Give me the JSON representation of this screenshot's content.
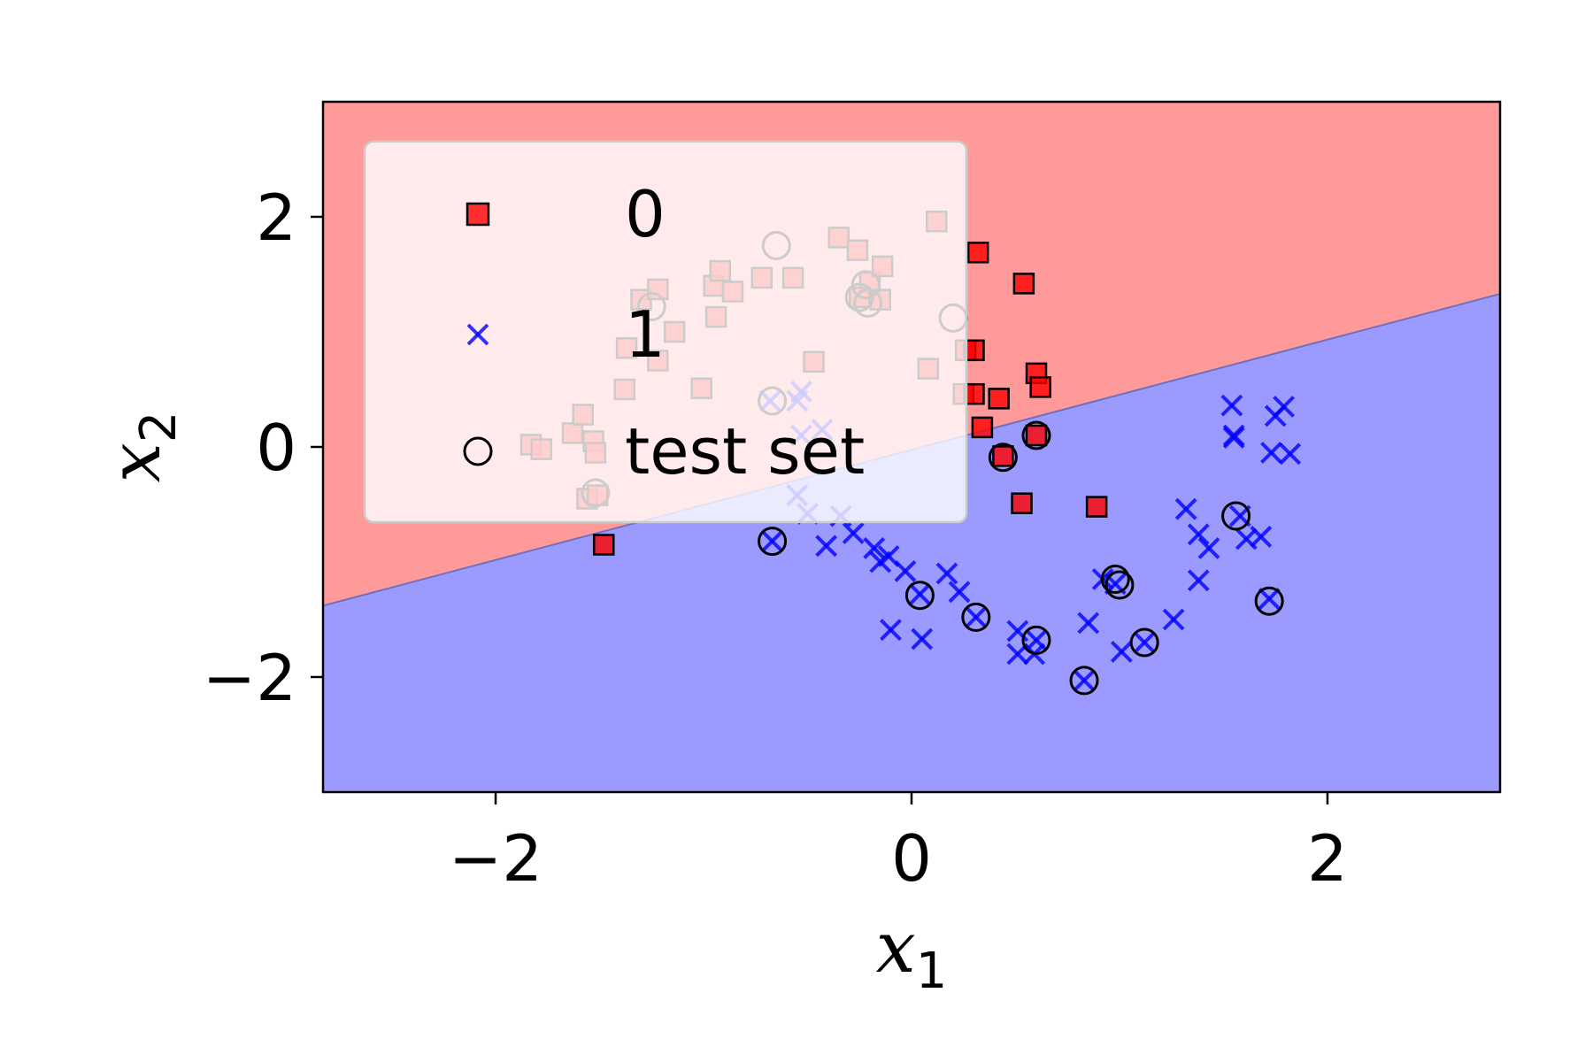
{
  "chart_data": {
    "type": "scatter",
    "xlabel": "x",
    "xlabel_sub": "1",
    "ylabel": "x",
    "ylabel_sub": "2",
    "xlim": [
      -2.83,
      2.83
    ],
    "ylim": [
      -3.0,
      3.0
    ],
    "xticks": [
      -2,
      0,
      2
    ],
    "yticks": [
      -2,
      0,
      2
    ],
    "xtick_labels": [
      "−2",
      "0",
      "2"
    ],
    "ytick_labels": [
      "−2",
      "0",
      "2"
    ],
    "grid": false,
    "decision_boundary": {
      "x_left": -2.83,
      "y_left": -1.38,
      "x_right": 2.83,
      "y_right": 1.33,
      "region_above": "0",
      "region_below": "1"
    },
    "legend": {
      "placement": "upper-left",
      "entries": [
        {
          "label": "0",
          "marker": "square"
        },
        {
          "label": "1",
          "marker": "x"
        },
        {
          "label": "test set",
          "marker": "circle"
        }
      ]
    },
    "series": [
      {
        "name": "0",
        "marker": "square",
        "points": [
          [
            -1.83,
            0.02
          ],
          [
            -1.78,
            -0.02
          ],
          [
            -1.63,
            0.12
          ],
          [
            -1.58,
            0.28
          ],
          [
            -1.53,
            0.05
          ],
          [
            -1.52,
            -0.05
          ],
          [
            -1.56,
            -0.45
          ],
          [
            -1.51,
            -0.42
          ],
          [
            -1.48,
            -0.85
          ],
          [
            -1.38,
            0.5
          ],
          [
            -1.37,
            0.86
          ],
          [
            -1.3,
            1.28
          ],
          [
            -1.22,
            1.37
          ],
          [
            -1.22,
            0.75
          ],
          [
            -1.14,
            1.0
          ],
          [
            -1.01,
            0.51
          ],
          [
            -0.95,
            1.4
          ],
          [
            -0.94,
            1.13
          ],
          [
            -0.92,
            1.53
          ],
          [
            -0.86,
            1.35
          ],
          [
            -0.72,
            1.47
          ],
          [
            -0.57,
            1.47
          ],
          [
            -0.47,
            0.74
          ],
          [
            -0.35,
            1.82
          ],
          [
            -0.26,
            1.71
          ],
          [
            -0.2,
            1.43
          ],
          [
            -0.15,
            1.28
          ],
          [
            -0.14,
            1.57
          ],
          [
            -0.25,
            1.3
          ],
          [
            0.08,
            0.68
          ],
          [
            0.12,
            1.96
          ],
          [
            0.25,
            0.46
          ],
          [
            0.26,
            0.84
          ],
          [
            0.3,
            0.84
          ],
          [
            0.3,
            0.46
          ],
          [
            0.32,
            1.69
          ],
          [
            0.34,
            0.17
          ],
          [
            0.42,
            0.42
          ],
          [
            0.44,
            -0.08
          ],
          [
            0.53,
            -0.49
          ],
          [
            0.54,
            1.42
          ],
          [
            0.6,
            0.64
          ],
          [
            0.62,
            0.52
          ],
          [
            0.6,
            0.1
          ],
          [
            0.89,
            -0.52
          ]
        ]
      },
      {
        "name": "1",
        "marker": "x",
        "points": [
          [
            -0.68,
            0.4
          ],
          [
            -0.67,
            -0.82
          ],
          [
            -0.55,
            0.4
          ],
          [
            -0.53,
            0.48
          ],
          [
            -0.53,
            0.1
          ],
          [
            -0.55,
            -0.42
          ],
          [
            -0.5,
            -0.58
          ],
          [
            -0.43,
            0.15
          ],
          [
            -0.41,
            -0.86
          ],
          [
            -0.34,
            -0.6
          ],
          [
            -0.28,
            -0.75
          ],
          [
            -0.18,
            -0.88
          ],
          [
            -0.15,
            -1.0
          ],
          [
            -0.11,
            -0.95
          ],
          [
            -0.1,
            -1.59
          ],
          [
            -0.03,
            -1.08
          ],
          [
            0.04,
            -1.28
          ],
          [
            0.05,
            -1.67
          ],
          [
            0.17,
            -1.1
          ],
          [
            0.23,
            -1.26
          ],
          [
            0.31,
            -1.48
          ],
          [
            0.51,
            -1.6
          ],
          [
            0.51,
            -1.8
          ],
          [
            0.59,
            -1.8
          ],
          [
            0.6,
            -1.68
          ],
          [
            0.83,
            -2.03
          ],
          [
            0.85,
            -1.53
          ],
          [
            0.92,
            -1.15
          ],
          [
            0.98,
            -1.19
          ],
          [
            1.01,
            -1.78
          ],
          [
            1.12,
            -1.7
          ],
          [
            1.26,
            -1.5
          ],
          [
            1.32,
            -0.54
          ],
          [
            1.38,
            -0.76
          ],
          [
            1.38,
            -1.16
          ],
          [
            1.43,
            -0.88
          ],
          [
            1.54,
            0.36
          ],
          [
            1.55,
            0.1
          ],
          [
            1.55,
            0.08
          ],
          [
            1.58,
            -0.6
          ],
          [
            1.61,
            -0.8
          ],
          [
            1.68,
            -0.78
          ],
          [
            1.72,
            -1.32
          ],
          [
            1.73,
            -0.05
          ],
          [
            1.75,
            0.27
          ],
          [
            1.79,
            0.35
          ],
          [
            1.82,
            -0.06
          ]
        ]
      },
      {
        "name": "test set",
        "marker": "circle",
        "points": [
          [
            -1.52,
            -0.4
          ],
          [
            -1.25,
            1.22
          ],
          [
            -0.65,
            1.75
          ],
          [
            -0.67,
            0.4
          ],
          [
            -0.67,
            -0.82
          ],
          [
            -0.25,
            1.3
          ],
          [
            -0.22,
            1.41
          ],
          [
            -0.21,
            1.25
          ],
          [
            0.2,
            1.12
          ],
          [
            0.44,
            -0.09
          ],
          [
            0.6,
            0.1
          ],
          [
            0.04,
            -1.29
          ],
          [
            0.31,
            -1.48
          ],
          [
            0.6,
            -1.68
          ],
          [
            0.83,
            -2.03
          ],
          [
            0.98,
            -1.15
          ],
          [
            1.0,
            -1.2
          ],
          [
            1.12,
            -1.7
          ],
          [
            1.56,
            -0.6
          ],
          [
            1.72,
            -1.34
          ]
        ]
      }
    ],
    "colors": {
      "class0_region": "#ff9a9a",
      "class1_region": "#9a9aff",
      "class0_marker": "#ff0000",
      "class1_marker": "#0000ff",
      "boundary": "#7070c0"
    }
  }
}
